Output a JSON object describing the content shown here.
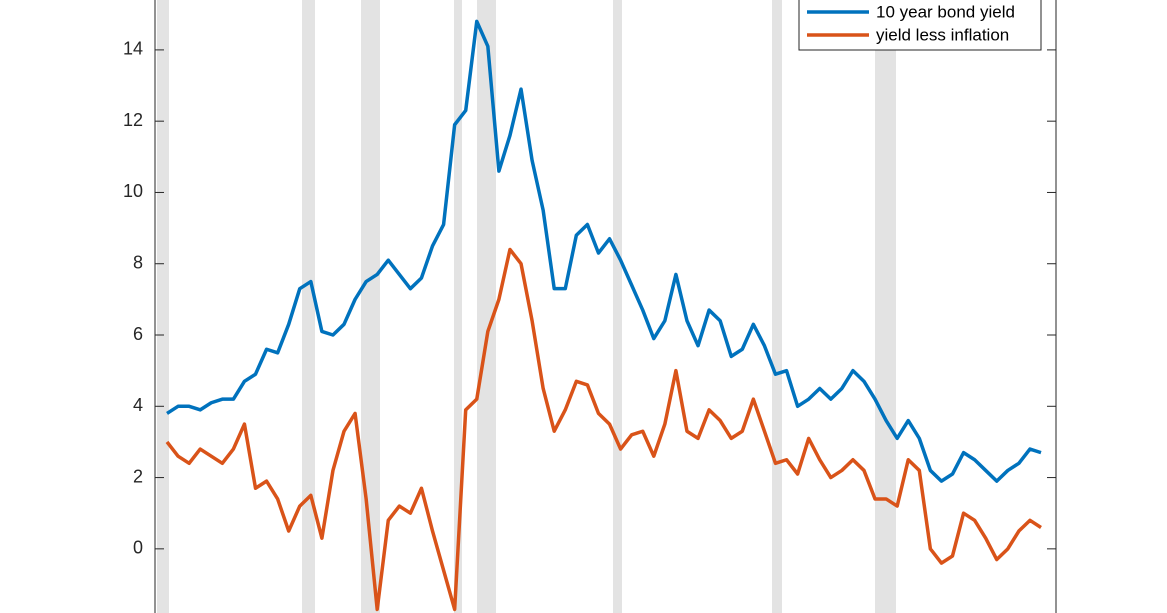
{
  "chart_data": {
    "type": "line",
    "series": [
      {
        "name": "10 year bond yield",
        "color": "#0072BD",
        "values": [
          3.8,
          4.0,
          4.0,
          3.9,
          4.1,
          4.2,
          4.2,
          4.7,
          4.9,
          5.6,
          5.5,
          6.3,
          7.3,
          7.5,
          6.1,
          6.0,
          6.3,
          7.0,
          7.5,
          7.7,
          8.1,
          7.7,
          7.3,
          7.6,
          8.5,
          9.1,
          11.9,
          12.3,
          14.8,
          14.1,
          10.6,
          11.6,
          12.9,
          10.9,
          9.5,
          7.3,
          7.3,
          8.8,
          9.1,
          8.3,
          8.7,
          8.1,
          7.4,
          6.7,
          5.9,
          6.4,
          7.7,
          6.4,
          5.7,
          6.7,
          6.4,
          5.4,
          5.6,
          6.3,
          5.7,
          4.9,
          5.0,
          4.0,
          4.2,
          4.5,
          4.2,
          4.5,
          5.0,
          4.7,
          4.2,
          3.6,
          3.1,
          3.6,
          3.1,
          2.2,
          1.9,
          2.1,
          2.7,
          2.5,
          2.2,
          1.9,
          2.2,
          2.4,
          2.8,
          2.7
        ]
      },
      {
        "name": "yield less inflation",
        "color": "#D95319",
        "values": [
          3.0,
          2.6,
          2.4,
          2.8,
          2.6,
          2.4,
          2.8,
          3.5,
          1.7,
          1.9,
          1.4,
          0.5,
          1.2,
          1.5,
          0.3,
          2.2,
          3.3,
          3.8,
          1.4,
          -1.7,
          0.8,
          1.2,
          1.0,
          1.7,
          0.5,
          -0.6,
          -1.7,
          3.9,
          4.2,
          6.1,
          7.0,
          8.4,
          8.0,
          6.4,
          4.5,
          3.3,
          3.9,
          4.7,
          4.6,
          3.8,
          3.5,
          2.8,
          3.2,
          3.3,
          2.6,
          3.5,
          5.0,
          3.3,
          3.1,
          3.9,
          3.6,
          3.1,
          3.3,
          4.2,
          3.3,
          2.4,
          2.5,
          2.1,
          3.1,
          2.5,
          2.0,
          2.2,
          2.5,
          2.2,
          1.4,
          1.4,
          1.2,
          2.5,
          2.2,
          0.0,
          -0.4,
          -0.2,
          1.0,
          0.8,
          0.3,
          -0.3,
          0.0,
          0.5,
          0.8,
          0.6
        ]
      }
    ],
    "ylim": [
      -1.8,
      15.4
    ],
    "yticks": [
      0,
      2,
      4,
      6,
      8,
      10,
      12,
      14
    ],
    "legend": "upper right"
  }
}
